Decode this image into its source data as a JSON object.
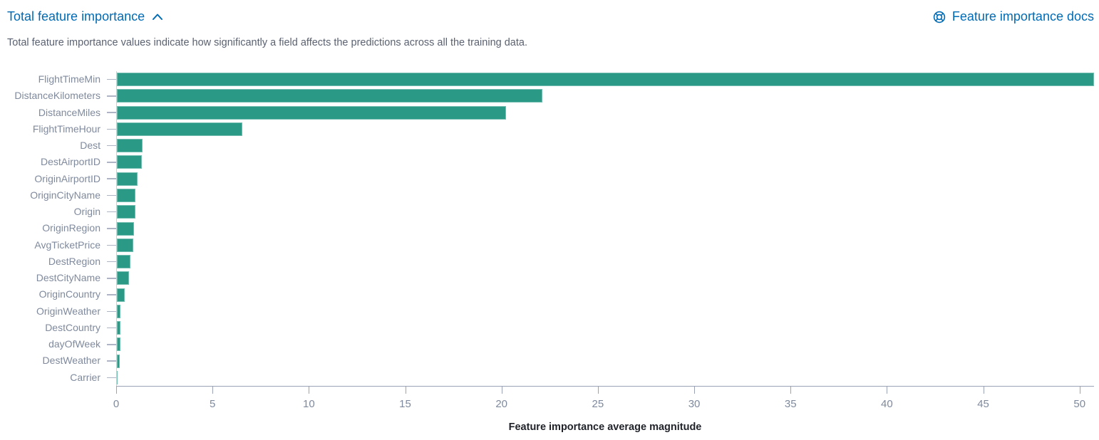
{
  "header": {
    "title": "Total feature importance",
    "collapse_icon": "chevron-up-icon",
    "docs_link": {
      "icon": "lifebuoy-icon",
      "label": "Feature importance docs"
    }
  },
  "description": "Total feature importance values indicate how significantly a field affects the predictions across all the training data.",
  "colors": {
    "accent_blue": "#006BB4",
    "bar_fill": "#2A9A87",
    "axis_label": "#7F8A9D",
    "axis_line": "#9AA2B6",
    "axis_title_text": "#1F2229"
  },
  "chart_data": {
    "type": "bar",
    "orientation": "horizontal",
    "title": "Total feature importance",
    "categories": [
      "FlightTimeMin",
      "DistanceKilometers",
      "DistanceMiles",
      "FlightTimeHour",
      "Dest",
      "DestAirportID",
      "OriginAirportID",
      "OriginCityName",
      "Origin",
      "OriginRegion",
      "AvgTicketPrice",
      "DestRegion",
      "DestCityName",
      "OriginCountry",
      "OriginWeather",
      "DestCountry",
      "dayOfWeek",
      "DestWeather",
      "Carrier"
    ],
    "values": [
      50.7,
      22.1,
      20.2,
      6.5,
      1.35,
      1.3,
      1.07,
      0.98,
      0.95,
      0.88,
      0.85,
      0.72,
      0.62,
      0.4,
      0.2,
      0.18,
      0.17,
      0.15,
      0.03
    ],
    "xlabel": "Feature importance average magnitude",
    "ylabel": "",
    "xlim": [
      0,
      50.75
    ],
    "xticks": [
      0,
      5,
      10,
      15,
      20,
      25,
      30,
      35,
      40,
      45,
      50
    ],
    "grid": false,
    "legend": false
  }
}
